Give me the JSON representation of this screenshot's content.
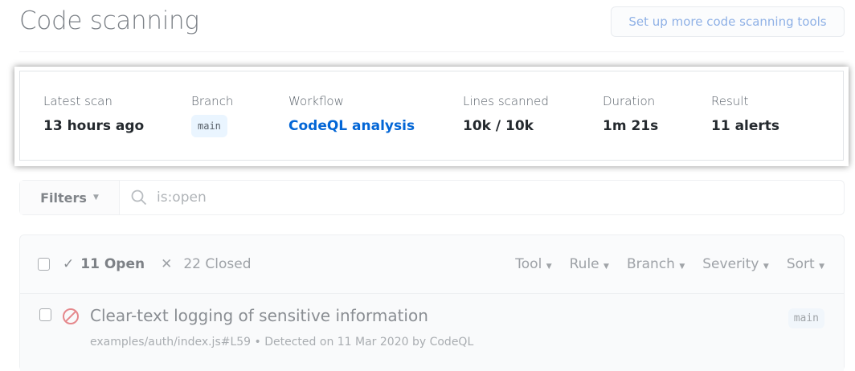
{
  "header": {
    "title": "Code scanning",
    "setup_button": "Set up more code scanning tools"
  },
  "scan": {
    "columns": [
      {
        "label": "Latest scan",
        "value": "13 hours ago"
      },
      {
        "label": "Branch",
        "value": "main"
      },
      {
        "label": "Workflow",
        "value": "CodeQL analysis"
      },
      {
        "label": "Lines scanned",
        "value": "10k / 10k"
      },
      {
        "label": "Duration",
        "value": "1m 21s"
      },
      {
        "label": "Result",
        "value": "11 alerts"
      }
    ]
  },
  "filter": {
    "button": "Filters",
    "search_value": "is:open",
    "search_icon": "search-icon"
  },
  "alerts": {
    "open": "11 Open",
    "closed": "22 Closed",
    "menus": [
      "Tool",
      "Rule",
      "Branch",
      "Severity",
      "Sort"
    ],
    "items": [
      {
        "title": "Clear-text logging of sensitive information",
        "meta": "examples/auth/index.js#L59 • Detected on 11 Mar 2020 by CodeQL",
        "branch": "main",
        "icon": "error-circle-slash-icon",
        "icon_color": "#e5888c"
      }
    ]
  },
  "colors": {
    "link": "#0366d6",
    "highlight_shadow": "#000000"
  }
}
